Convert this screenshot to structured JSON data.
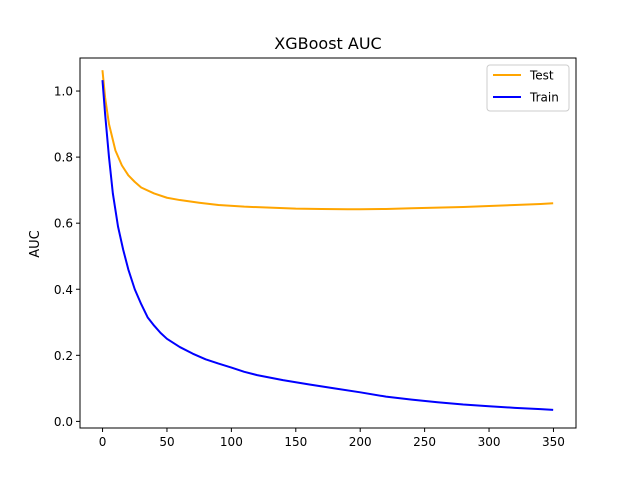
{
  "chart_data": {
    "type": "line",
    "title": "XGBoost AUC",
    "xlabel": "",
    "ylabel": "AUC",
    "xlim": [
      -17.5,
      367.5
    ],
    "ylim": [
      -0.02,
      1.1
    ],
    "xticks": [
      0,
      50,
      100,
      150,
      200,
      250,
      300,
      350
    ],
    "yticks": [
      0.0,
      0.2,
      0.4,
      0.6,
      0.8,
      1.0
    ],
    "xtick_labels": [
      "0",
      "50",
      "100",
      "150",
      "200",
      "250",
      "300",
      "350"
    ],
    "ytick_labels": [
      "0.0",
      "0.2",
      "0.4",
      "0.6",
      "0.8",
      "1.0"
    ],
    "grid": false,
    "legend_position": "top-right",
    "series": [
      {
        "name": "Test",
        "color": "#ffa500",
        "x": [
          0,
          2,
          5,
          10,
          15,
          20,
          25,
          30,
          40,
          50,
          60,
          75,
          90,
          110,
          130,
          150,
          170,
          190,
          200,
          220,
          240,
          260,
          280,
          300,
          320,
          340,
          349
        ],
        "y": [
          1.06,
          0.98,
          0.9,
          0.82,
          0.775,
          0.745,
          0.725,
          0.708,
          0.69,
          0.677,
          0.67,
          0.662,
          0.655,
          0.65,
          0.647,
          0.644,
          0.643,
          0.642,
          0.642,
          0.643,
          0.645,
          0.647,
          0.649,
          0.652,
          0.655,
          0.658,
          0.66
        ]
      },
      {
        "name": "Train",
        "color": "#0000ff",
        "x": [
          0,
          2,
          5,
          8,
          12,
          16,
          20,
          25,
          30,
          35,
          40,
          45,
          50,
          60,
          70,
          80,
          90,
          100,
          110,
          120,
          140,
          160,
          180,
          200,
          220,
          240,
          260,
          280,
          300,
          320,
          340,
          349
        ],
        "y": [
          1.03,
          0.93,
          0.8,
          0.69,
          0.59,
          0.52,
          0.46,
          0.4,
          0.355,
          0.315,
          0.29,
          0.268,
          0.25,
          0.225,
          0.205,
          0.188,
          0.175,
          0.163,
          0.15,
          0.14,
          0.125,
          0.112,
          0.1,
          0.088,
          0.075,
          0.066,
          0.058,
          0.051,
          0.046,
          0.041,
          0.037,
          0.035
        ]
      }
    ]
  }
}
